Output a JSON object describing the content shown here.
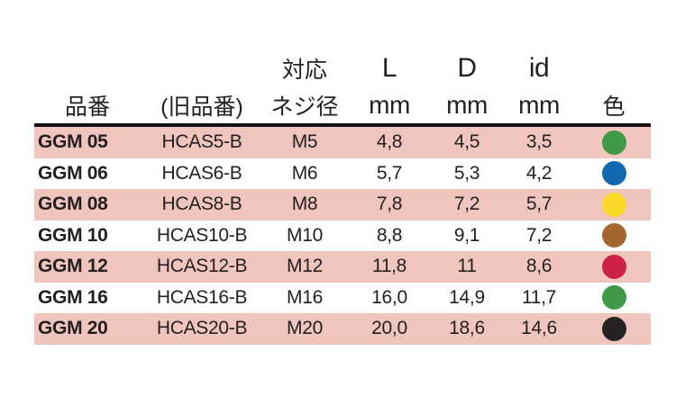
{
  "table": {
    "header": {
      "part_no": "品番",
      "old_part_no": "(旧品番)",
      "screw_line1": "対応",
      "screw_line2": "ネジ径",
      "l_label": "L",
      "d_label": "D",
      "id_label": "id",
      "mm": "mm",
      "color_label": "色"
    },
    "rows": [
      {
        "part_no": "GGM 05",
        "old_part_no": "HCAS5-B",
        "screw": "M5",
        "l_mm": "4,8",
        "d_mm": "4,5",
        "id_mm": "3,5",
        "color_name": "green",
        "color_hex": "#3e9a48"
      },
      {
        "part_no": "GGM 06",
        "old_part_no": "HCAS6-B",
        "screw": "M6",
        "l_mm": "5,7",
        "d_mm": "5,3",
        "id_mm": "4,2",
        "color_name": "blue",
        "color_hex": "#1268b1"
      },
      {
        "part_no": "GGM 08",
        "old_part_no": "HCAS8-B",
        "screw": "M8",
        "l_mm": "7,8",
        "d_mm": "7,2",
        "id_mm": "5,7",
        "color_name": "yellow",
        "color_hex": "#fad829"
      },
      {
        "part_no": "GGM 10",
        "old_part_no": "HCAS10-B",
        "screw": "M10",
        "l_mm": "8,8",
        "d_mm": "9,1",
        "id_mm": "7,2",
        "color_name": "brown",
        "color_hex": "#a4682e"
      },
      {
        "part_no": "GGM 12",
        "old_part_no": "HCAS12-B",
        "screw": "M12",
        "l_mm": "11,8",
        "d_mm": "11",
        "id_mm": "8,6",
        "color_name": "red",
        "color_hex": "#ce2147"
      },
      {
        "part_no": "GGM 16",
        "old_part_no": "HCAS16-B",
        "screw": "M16",
        "l_mm": "16,0",
        "d_mm": "14,9",
        "id_mm": "11,7",
        "color_name": "green",
        "color_hex": "#3e9a48"
      },
      {
        "part_no": "GGM 20",
        "old_part_no": "HCAS20-B",
        "screw": "M20",
        "l_mm": "20,0",
        "d_mm": "18,6",
        "id_mm": "14,6",
        "color_name": "black",
        "color_hex": "#262123"
      }
    ],
    "stripe_color": "#f0c5bd",
    "text_color": "#231f20",
    "rule_color": "#171314"
  },
  "chart_data": {
    "type": "table",
    "columns": [
      "品番",
      "(旧品番)",
      "対応ネジ径",
      "L mm",
      "D mm",
      "id mm",
      "色"
    ],
    "rows": [
      [
        "GGM 05",
        "HCAS5-B",
        "M5",
        "4,8",
        "4,5",
        "3,5",
        "green"
      ],
      [
        "GGM 06",
        "HCAS6-B",
        "M6",
        "5,7",
        "5,3",
        "4,2",
        "blue"
      ],
      [
        "GGM 08",
        "HCAS8-B",
        "M8",
        "7,8",
        "7,2",
        "5,7",
        "yellow"
      ],
      [
        "GGM 10",
        "HCAS10-B",
        "M10",
        "8,8",
        "9,1",
        "7,2",
        "brown"
      ],
      [
        "GGM 12",
        "HCAS12-B",
        "M12",
        "11,8",
        "11",
        "8,6",
        "red"
      ],
      [
        "GGM 16",
        "HCAS16-B",
        "M16",
        "16,0",
        "14,9",
        "11,7",
        "green"
      ],
      [
        "GGM 20",
        "HCAS20-B",
        "M20",
        "20,0",
        "18,6",
        "14,6",
        "black"
      ]
    ],
    "title": "",
    "layout_hints": "alternating salmon-pink row stripes on rows 1,3,5,7; thick black rule under two-line header; color column rendered as filled circles"
  }
}
